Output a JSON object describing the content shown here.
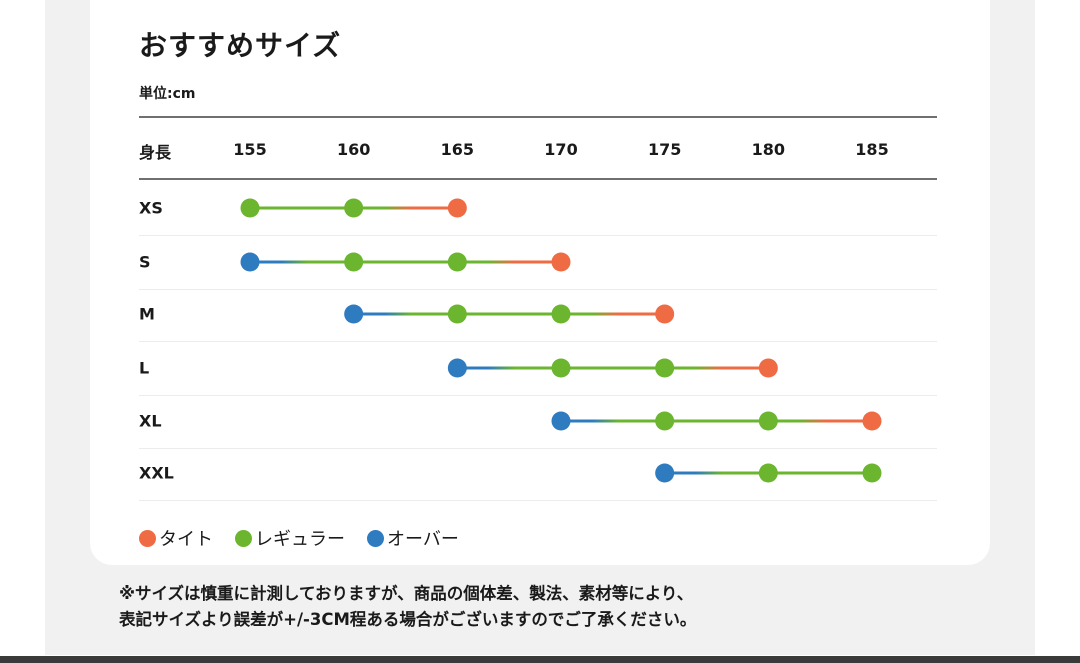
{
  "title": "おすすめサイズ",
  "unit_label": "単位:cm",
  "chart_data": {
    "type": "dot-range",
    "x_header": "身長",
    "x_ticks": [
      155,
      160,
      165,
      170,
      175,
      180,
      185
    ],
    "rows": [
      {
        "size": "XS",
        "points": [
          {
            "height": 155,
            "fit": "regular"
          },
          {
            "height": 160,
            "fit": "regular"
          },
          {
            "height": 165,
            "fit": "tight"
          }
        ]
      },
      {
        "size": "S",
        "points": [
          {
            "height": 155,
            "fit": "over"
          },
          {
            "height": 160,
            "fit": "regular"
          },
          {
            "height": 165,
            "fit": "regular"
          },
          {
            "height": 170,
            "fit": "tight"
          }
        ]
      },
      {
        "size": "M",
        "points": [
          {
            "height": 160,
            "fit": "over"
          },
          {
            "height": 165,
            "fit": "regular"
          },
          {
            "height": 170,
            "fit": "regular"
          },
          {
            "height": 175,
            "fit": "tight"
          }
        ]
      },
      {
        "size": "L",
        "points": [
          {
            "height": 165,
            "fit": "over"
          },
          {
            "height": 170,
            "fit": "regular"
          },
          {
            "height": 175,
            "fit": "regular"
          },
          {
            "height": 180,
            "fit": "tight"
          }
        ]
      },
      {
        "size": "XL",
        "points": [
          {
            "height": 170,
            "fit": "over"
          },
          {
            "height": 175,
            "fit": "regular"
          },
          {
            "height": 180,
            "fit": "regular"
          },
          {
            "height": 185,
            "fit": "tight"
          }
        ]
      },
      {
        "size": "XXL",
        "points": [
          {
            "height": 175,
            "fit": "over"
          },
          {
            "height": 180,
            "fit": "regular"
          },
          {
            "height": 185,
            "fit": "regular"
          }
        ]
      }
    ],
    "legend": [
      {
        "key": "tight",
        "label": "タイト",
        "color": "#ef6b43"
      },
      {
        "key": "regular",
        "label": "レギュラー",
        "color": "#6bb52f"
      },
      {
        "key": "over",
        "label": "オーバー",
        "color": "#2f7bbf"
      }
    ]
  },
  "note": {
    "line1": "※サイズは慎重に計測しておりますが、商品の個体差、製法、素材等により、",
    "line2": "表記サイズより誤差が+/-3CM程ある場合がございますのでご了承ください。"
  }
}
